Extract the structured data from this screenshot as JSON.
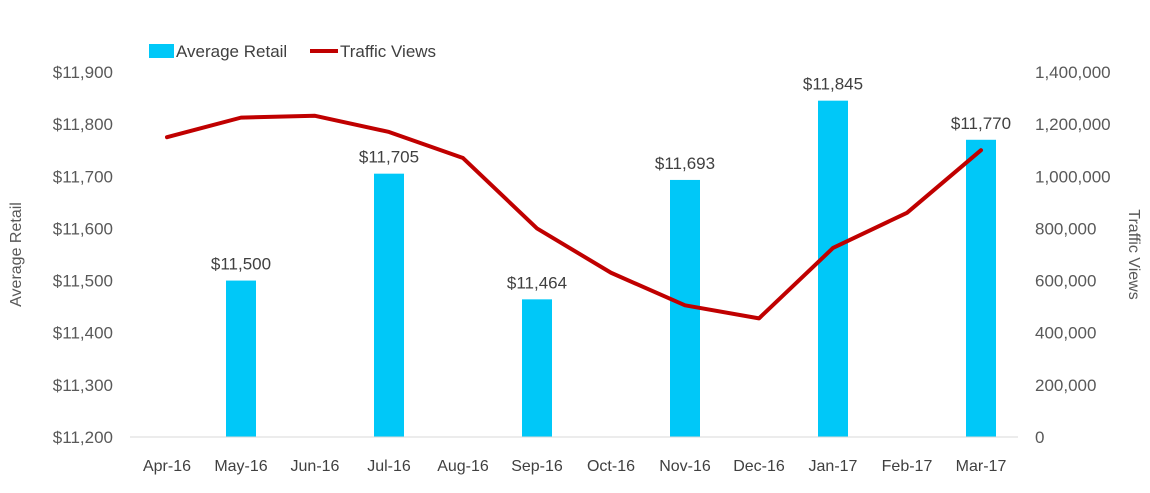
{
  "chart_data": {
    "type": "bar",
    "categories": [
      "Apr-16",
      "May-16",
      "Jun-16",
      "Jul-16",
      "Aug-16",
      "Sep-16",
      "Oct-16",
      "Nov-16",
      "Dec-16",
      "Jan-17",
      "Feb-17",
      "Mar-17"
    ],
    "series": [
      {
        "name": "Average Retail",
        "type": "bar",
        "axis": "left",
        "color": "#00C8F8",
        "values": [
          null,
          11500,
          null,
          11705,
          null,
          11464,
          null,
          11693,
          null,
          11845,
          null,
          11770
        ],
        "data_labels": [
          "",
          "$11,500",
          "",
          "$11,705",
          "",
          "$11,464",
          "",
          "$11,693",
          "",
          "$11,845",
          "",
          "$11,770"
        ]
      },
      {
        "name": "Traffic Views",
        "type": "line",
        "axis": "right",
        "color": "#C00000",
        "values": [
          1150000,
          1225000,
          1232000,
          1170000,
          1070000,
          800000,
          630000,
          505000,
          455000,
          725000,
          860000,
          1100000
        ]
      }
    ],
    "y_left": {
      "label": "Average Retail",
      "ylim": [
        11200,
        11900
      ],
      "ticks": [
        11200,
        11300,
        11400,
        11500,
        11600,
        11700,
        11800,
        11900
      ],
      "tick_labels": [
        "$11,200",
        "$11,300",
        "$11,400",
        "$11,500",
        "$11,600",
        "$11,700",
        "$11,800",
        "$11,900"
      ]
    },
    "y_right": {
      "label": "Traffic Views",
      "ylim": [
        0,
        1400000
      ],
      "ticks": [
        0,
        200000,
        400000,
        600000,
        800000,
        1000000,
        1200000,
        1400000
      ],
      "tick_labels": [
        "0",
        "200,000",
        "400,000",
        "600,000",
        "800,000",
        "1,000,000",
        "1,200,000",
        "1,400,000"
      ]
    },
    "legend": {
      "position": "top-left",
      "entries": [
        "Average Retail",
        "Traffic Views"
      ]
    },
    "grid": false
  }
}
